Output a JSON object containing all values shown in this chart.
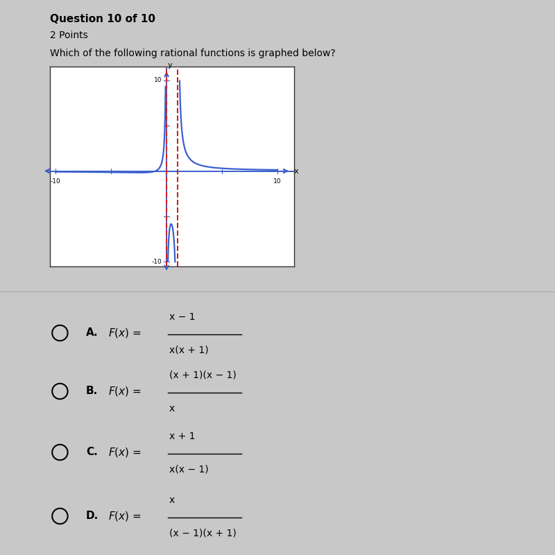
{
  "title": "Question 10 of 10",
  "subtitle": "2 Points",
  "question": "Which of the following rational functions is graphed below?",
  "background_color": "#c8c8c8",
  "graph_bg": "#ffffff",
  "graph_border": "#333333",
  "graph_xlim": [
    -10,
    10
  ],
  "graph_ylim": [
    -10,
    10
  ],
  "curve_color": "#3a5fcd",
  "asymptote_color": "#cc2222",
  "choices": [
    {
      "label": "A",
      "formula_top": "x − 1",
      "formula_bot": "x(x + 1)"
    },
    {
      "label": "B",
      "formula_top": "(x + 1)(x − 1)",
      "formula_bot": "x"
    },
    {
      "label": "C",
      "formula_top": "x + 1",
      "formula_bot": "x(x − 1)"
    },
    {
      "label": "D",
      "formula_top": "x",
      "formula_bot": "(x − 1)(x + 1)"
    }
  ]
}
